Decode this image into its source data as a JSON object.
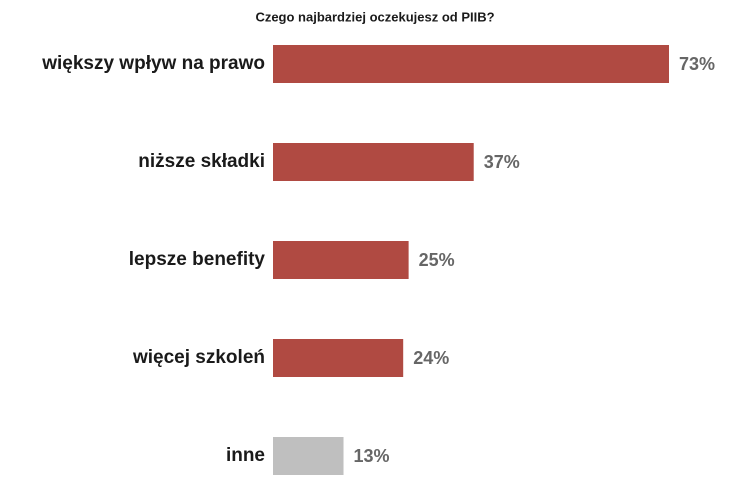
{
  "chart_data": {
    "type": "bar",
    "orientation": "horizontal",
    "title": "Czego najbardziej oczekujesz od PIIB?",
    "categories": [
      "większy wpływ na prawo",
      "niższe składki",
      "lepsze benefity",
      "więcej szkoleń",
      "inne"
    ],
    "values": [
      73,
      37,
      25,
      24,
      13
    ],
    "value_labels": [
      "73%",
      "37%",
      "25%",
      "24%",
      "13%"
    ],
    "colors": [
      "#b04a42",
      "#b04a42",
      "#b04a42",
      "#b04a42",
      "#bfbfbf"
    ]
  }
}
